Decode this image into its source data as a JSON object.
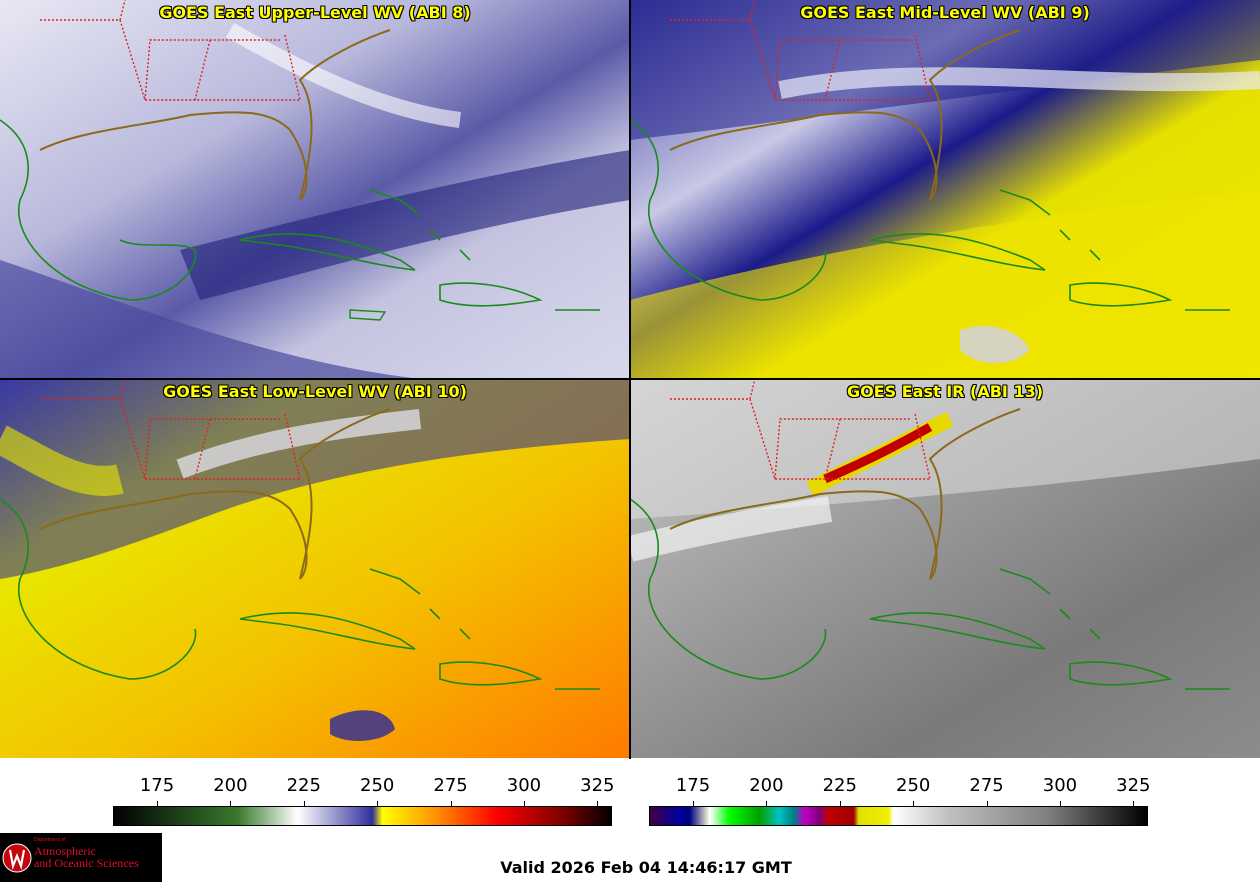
{
  "panels": [
    {
      "title": "GOES East Upper-Level WV (ABI 8)"
    },
    {
      "title": "GOES East Mid-Level WV (ABI 9)"
    },
    {
      "title": "GOES East Low-Level WV (ABI 10)"
    },
    {
      "title": "GOES East IR (ABI 13)"
    }
  ],
  "colorbars": {
    "wv": {
      "ticks": [
        "175",
        "200",
        "225",
        "250",
        "275",
        "300",
        "325"
      ]
    },
    "ir": {
      "ticks": [
        "175",
        "200",
        "225",
        "250",
        "275",
        "300",
        "325"
      ]
    }
  },
  "logo": {
    "dept": "Department of",
    "line1": "Atmospheric",
    "line2": "and Oceanic Sciences"
  },
  "valid_time": "Valid 2026 Feb 04 14:46:17 GMT",
  "colors": {
    "coast": "#1a8a1a",
    "state_border": "#dd2222",
    "title": "#ffff00"
  }
}
